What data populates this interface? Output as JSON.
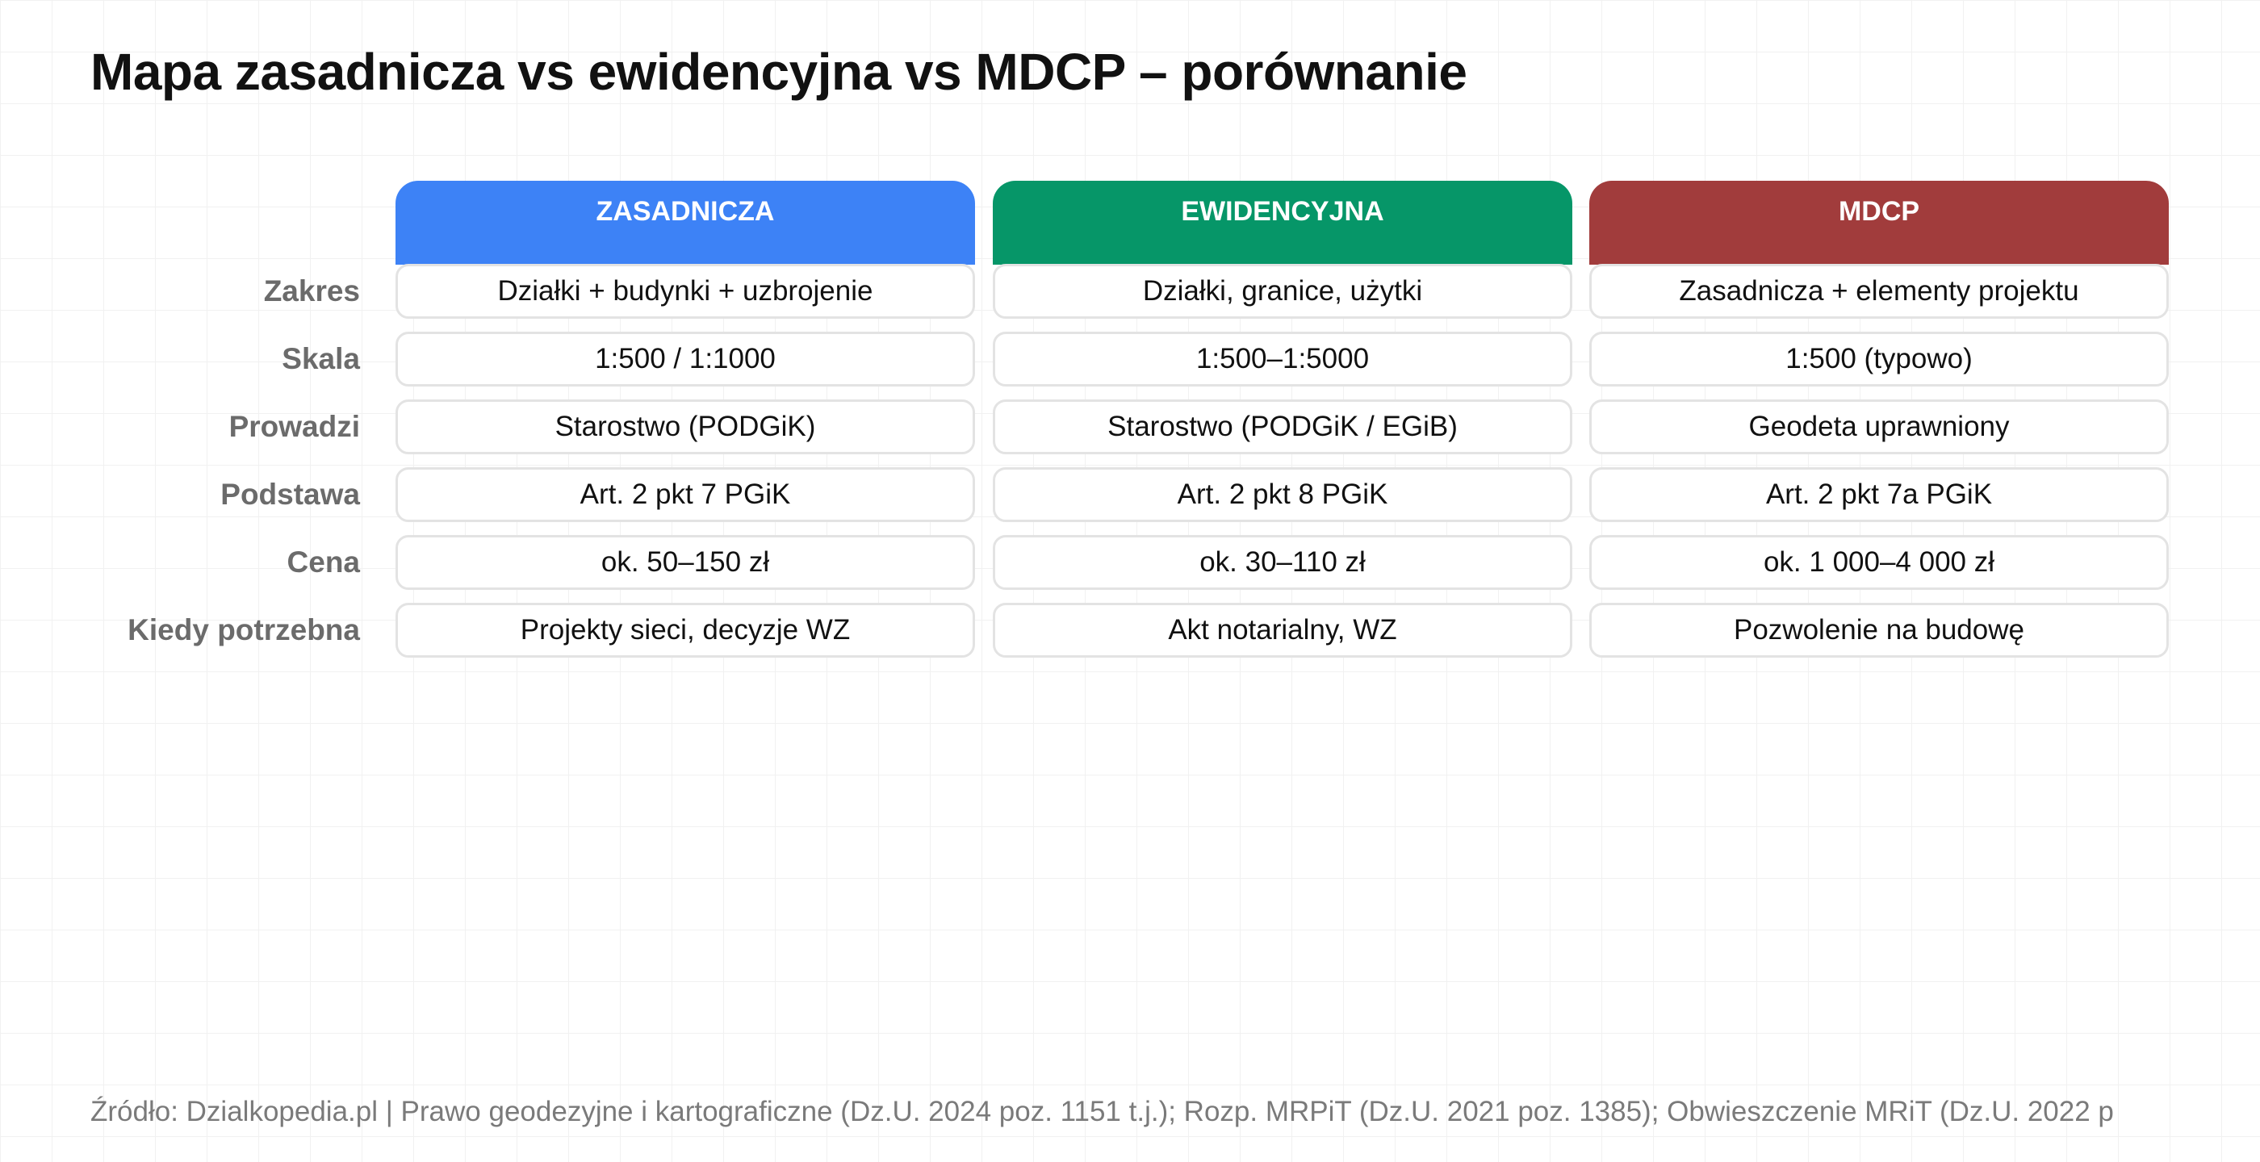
{
  "title": "Mapa zasadnicza vs ewidencyjna vs MDCP – porównanie",
  "colors": {
    "zasadnicza": "#3d82f6",
    "ewidencyjna": "#069668",
    "mdcp": "#a13c3c"
  },
  "columns": [
    {
      "name": "ZASADNICZA"
    },
    {
      "name": "EWIDENCYJNA"
    },
    {
      "name": "MDCP"
    }
  ],
  "rows": [
    {
      "label": "Zakres",
      "values": [
        "Działki + budynki + uzbrojenie",
        "Działki, granice, użytki",
        "Zasadnicza + elementy projektu"
      ]
    },
    {
      "label": "Skala",
      "values": [
        "1:500 / 1:1000",
        "1:500–1:5000",
        "1:500 (typowo)"
      ]
    },
    {
      "label": "Prowadzi",
      "values": [
        "Starostwo (PODGiK)",
        "Starostwo (PODGiK / EGiB)",
        "Geodeta uprawniony"
      ]
    },
    {
      "label": "Podstawa",
      "values": [
        "Art. 2 pkt 7 PGiK",
        "Art. 2 pkt 8 PGiK",
        "Art. 2 pkt 7a PGiK"
      ]
    },
    {
      "label": "Cena",
      "values": [
        "ok. 50–150 zł",
        "ok. 30–110 zł",
        "ok. 1 000–4 000 zł"
      ]
    },
    {
      "label": "Kiedy potrzebna",
      "values": [
        "Projekty sieci, decyzje WZ",
        "Akt notarialny, WZ",
        "Pozwolenie na budowę"
      ]
    }
  ],
  "source": "Źródło: Dzialkopedia.pl | Prawo geodezyjne i kartograficzne (Dz.U. 2024 poz. 1151 t.j.); Rozp. MRPiT (Dz.U. 2021 poz. 1385); Obwieszczenie MRiT (Dz.U. 2022 p"
}
